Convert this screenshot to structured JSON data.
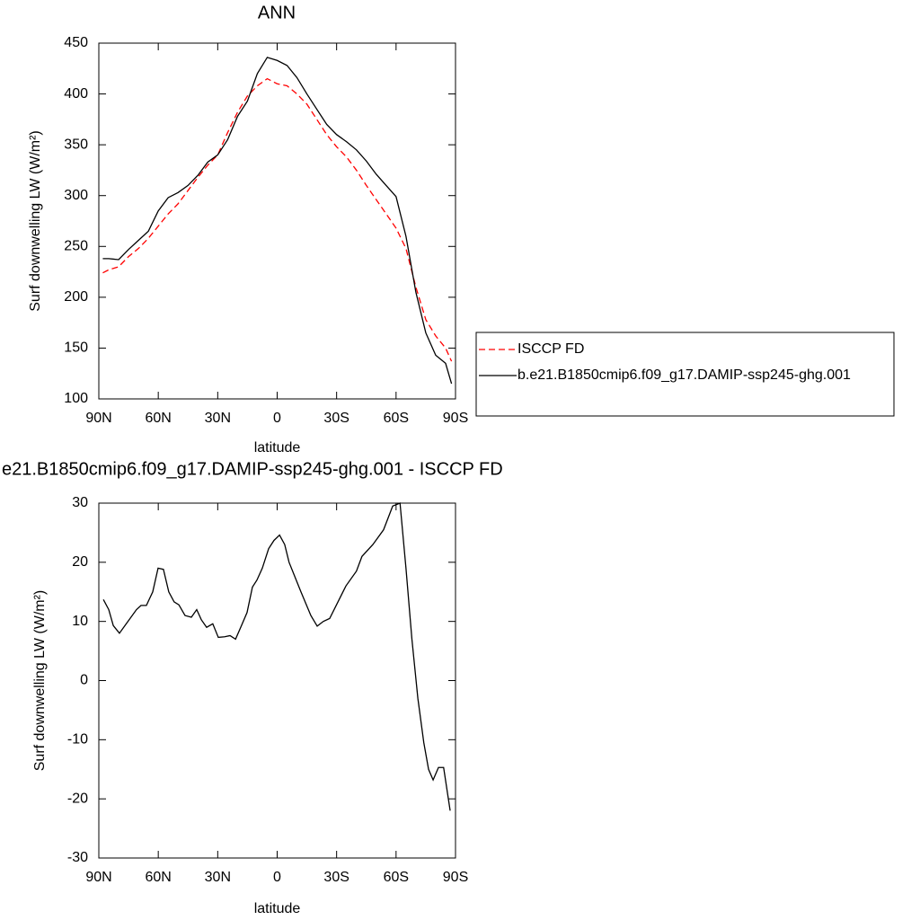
{
  "chart_data": [
    {
      "type": "line",
      "title": "ANN",
      "x_label": "latitude",
      "y_label": "Surf downwelling LW (W/m²)",
      "x": [
        88,
        85,
        80,
        75,
        70,
        65,
        60,
        55,
        50,
        45,
        40,
        35,
        30,
        25,
        20,
        15,
        10,
        5,
        0,
        -5,
        -10,
        -15,
        -20,
        -25,
        -30,
        -35,
        -40,
        -45,
        -50,
        -55,
        -60,
        -65,
        -70,
        -75,
        -80,
        -85,
        -88
      ],
      "series": [
        {
          "name": "ISCCP FD",
          "color": "#ff0000",
          "linestyle": "dashed",
          "values": [
            224,
            227,
            230,
            240,
            248,
            258,
            270,
            282,
            292,
            305,
            318,
            330,
            340,
            362,
            382,
            398,
            408,
            415,
            410,
            408,
            400,
            390,
            375,
            360,
            348,
            338,
            325,
            310,
            296,
            282,
            268,
            248,
            210,
            178,
            162,
            150,
            137
          ]
        },
        {
          "name": "b.e21.B1850cmip6.f09_g17.DAMIP-ssp245-ghg.001",
          "color": "#000000",
          "linestyle": "solid",
          "values": [
            238,
            238,
            237,
            247,
            256,
            265,
            285,
            298,
            303,
            310,
            320,
            333,
            340,
            355,
            378,
            393,
            420,
            436,
            433,
            428,
            416,
            400,
            385,
            370,
            360,
            353,
            345,
            334,
            321,
            310,
            299,
            260,
            205,
            165,
            143,
            135,
            115
          ]
        }
      ],
      "xlim": [
        90,
        -90
      ],
      "xticks": [
        {
          "value": 90,
          "label": "90N"
        },
        {
          "value": 60,
          "label": "60N"
        },
        {
          "value": 30,
          "label": "30N"
        },
        0,
        {
          "value": -30,
          "label": "30S"
        },
        {
          "value": -60,
          "label": "60S"
        },
        {
          "value": -90,
          "label": "90S"
        }
      ],
      "ylim": [
        100,
        450
      ],
      "yticks": [
        100,
        150,
        200,
        250,
        300,
        350,
        400,
        450
      ],
      "legend": "right"
    },
    {
      "type": "line",
      "title": "e21.B1850cmip6.f09_g17.DAMIP-ssp245-ghg.001 - ISCCP FD",
      "x_label": "latitude",
      "y_label": "Surf downwelling LW (W/m²)",
      "x": [
        87.7,
        85,
        82.7,
        79.6,
        76.4,
        71,
        68.7,
        66,
        62.8,
        60.1,
        57.4,
        54.7,
        52,
        49.6,
        46.5,
        43.3,
        40.6,
        38.3,
        35.6,
        32.5,
        29.7,
        26.5,
        23.8,
        21,
        18.4,
        15.2,
        12.5,
        10.2,
        7.5,
        4.3,
        1.6,
        -1.2,
        -3.8,
        -6,
        -12,
        -17,
        -20.2,
        -23.3,
        -26.5,
        -34.7,
        -40,
        -42.8,
        -48.3,
        -53.7,
        -58.3,
        -62,
        -65,
        -68,
        -71,
        -74,
        -76.4,
        -78.7,
        -81.4,
        -84,
        -87.3
      ],
      "series": [
        {
          "color": "#000000",
          "linestyle": "solid",
          "values": [
            13.7,
            12,
            9.3,
            8,
            9.5,
            12,
            12.7,
            12.7,
            15,
            19,
            18.8,
            15,
            13.3,
            12.8,
            11,
            10.7,
            12,
            10.3,
            9,
            9.6,
            7.3,
            7.4,
            7.6,
            7,
            9,
            11.5,
            15.8,
            17,
            19,
            22.3,
            23.7,
            24.6,
            23,
            20,
            15,
            11,
            9.2,
            10,
            10.5,
            16,
            18.5,
            21,
            23,
            25.5,
            29.5,
            30,
            19,
            7,
            -3,
            -10.5,
            -15,
            -16.8,
            -14.7,
            -14.7,
            -22
          ]
        }
      ],
      "xlim": [
        90,
        -90
      ],
      "xticks": [
        {
          "value": 90,
          "label": "90N"
        },
        {
          "value": 60,
          "label": "60N"
        },
        {
          "value": 30,
          "label": "30N"
        },
        0,
        {
          "value": -30,
          "label": "30S"
        },
        {
          "value": -60,
          "label": "60S"
        },
        {
          "value": -90,
          "label": "90S"
        }
      ],
      "ylim": [
        -30,
        30
      ],
      "yticks": [
        -30,
        -20,
        -10,
        0,
        10,
        20,
        30
      ]
    }
  ]
}
